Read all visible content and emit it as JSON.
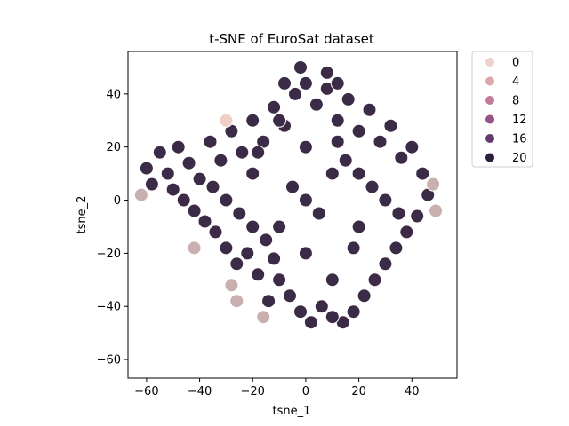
{
  "chart_data": {
    "type": "scatter",
    "title": "t-SNE of EuroSat dataset",
    "xlabel": "tsne_1",
    "ylabel": "tsne_2",
    "xlim": [
      -67,
      57
    ],
    "ylim": [
      -67,
      56
    ],
    "xticks": [
      -60,
      -40,
      -20,
      0,
      20,
      40
    ],
    "yticks": [
      -60,
      -40,
      -20,
      0,
      20,
      40
    ],
    "grid": false,
    "legend_placement": "outside-top-right",
    "hue_range": [
      0,
      22
    ],
    "colormap": [
      "#eed0c9",
      "#2a1a3a"
    ],
    "legend": [
      {
        "label": "0",
        "value": 0,
        "color": "#edd1cb"
      },
      {
        "label": "4",
        "value": 4,
        "color": "#dea6ad"
      },
      {
        "label": "8",
        "value": 8,
        "color": "#c27b98"
      },
      {
        "label": "12",
        "value": 12,
        "color": "#975288"
      },
      {
        "label": "16",
        "value": 16,
        "color": "#633c6c"
      },
      {
        "label": "20",
        "value": 20,
        "color": "#2d1e3e"
      }
    ],
    "points": [
      [
        -55,
        18,
        20
      ],
      [
        -52,
        10,
        20
      ],
      [
        -48,
        20,
        20
      ],
      [
        -44,
        14,
        20
      ],
      [
        -40,
        8,
        20
      ],
      [
        -36,
        22,
        20
      ],
      [
        -32,
        15,
        20
      ],
      [
        -28,
        26,
        20
      ],
      [
        -24,
        18,
        20
      ],
      [
        -20,
        30,
        20
      ],
      [
        -16,
        22,
        20
      ],
      [
        -12,
        35,
        20
      ],
      [
        -8,
        28,
        20
      ],
      [
        -4,
        40,
        20
      ],
      [
        0,
        44,
        20
      ],
      [
        4,
        36,
        20
      ],
      [
        8,
        42,
        20
      ],
      [
        12,
        30,
        20
      ],
      [
        16,
        38,
        20
      ],
      [
        20,
        26,
        20
      ],
      [
        24,
        34,
        20
      ],
      [
        28,
        22,
        20
      ],
      [
        32,
        28,
        20
      ],
      [
        36,
        16,
        20
      ],
      [
        40,
        20,
        20
      ],
      [
        44,
        10,
        20
      ],
      [
        46,
        2,
        20
      ],
      [
        42,
        -6,
        20
      ],
      [
        38,
        -12,
        20
      ],
      [
        34,
        -18,
        20
      ],
      [
        30,
        -24,
        20
      ],
      [
        26,
        -30,
        20
      ],
      [
        22,
        -36,
        20
      ],
      [
        18,
        -42,
        20
      ],
      [
        14,
        -46,
        20
      ],
      [
        10,
        -44,
        20
      ],
      [
        6,
        -40,
        20
      ],
      [
        2,
        -46,
        20
      ],
      [
        -2,
        -42,
        20
      ],
      [
        -6,
        -36,
        20
      ],
      [
        -10,
        -30,
        20
      ],
      [
        -14,
        -38,
        20
      ],
      [
        -18,
        -28,
        20
      ],
      [
        -22,
        -20,
        20
      ],
      [
        -26,
        -24,
        20
      ],
      [
        -30,
        -18,
        20
      ],
      [
        -34,
        -12,
        20
      ],
      [
        -38,
        -8,
        20
      ],
      [
        -42,
        -4,
        20
      ],
      [
        -46,
        0,
        20
      ],
      [
        -50,
        4,
        20
      ],
      [
        -58,
        6,
        20
      ],
      [
        -60,
        12,
        20
      ],
      [
        -62,
        2,
        4
      ],
      [
        -30,
        30,
        0
      ],
      [
        -10,
        -10,
        20
      ],
      [
        0,
        0,
        20
      ],
      [
        10,
        10,
        20
      ],
      [
        -20,
        10,
        20
      ],
      [
        20,
        -10,
        20
      ],
      [
        0,
        20,
        20
      ],
      [
        0,
        -20,
        20
      ],
      [
        -20,
        -10,
        20
      ],
      [
        20,
        10,
        20
      ],
      [
        30,
        0,
        20
      ],
      [
        -30,
        0,
        20
      ],
      [
        10,
        -30,
        20
      ],
      [
        -10,
        30,
        20
      ],
      [
        15,
        15,
        20
      ],
      [
        -15,
        -15,
        20
      ],
      [
        5,
        -5,
        20
      ],
      [
        -5,
        5,
        20
      ],
      [
        25,
        5,
        20
      ],
      [
        -25,
        -5,
        20
      ],
      [
        35,
        -5,
        20
      ],
      [
        -35,
        5,
        20
      ],
      [
        12,
        22,
        20
      ],
      [
        -12,
        -22,
        20
      ],
      [
        18,
        -18,
        20
      ],
      [
        -18,
        18,
        20
      ],
      [
        8,
        48,
        20
      ],
      [
        -2,
        50,
        20
      ],
      [
        12,
        44,
        20
      ],
      [
        -8,
        44,
        20
      ],
      [
        48,
        6,
        4
      ],
      [
        49,
        -4,
        4
      ],
      [
        -28,
        -32,
        4
      ],
      [
        -26,
        -38,
        4
      ],
      [
        -16,
        -44,
        4
      ],
      [
        -42,
        -18,
        4
      ]
    ]
  }
}
